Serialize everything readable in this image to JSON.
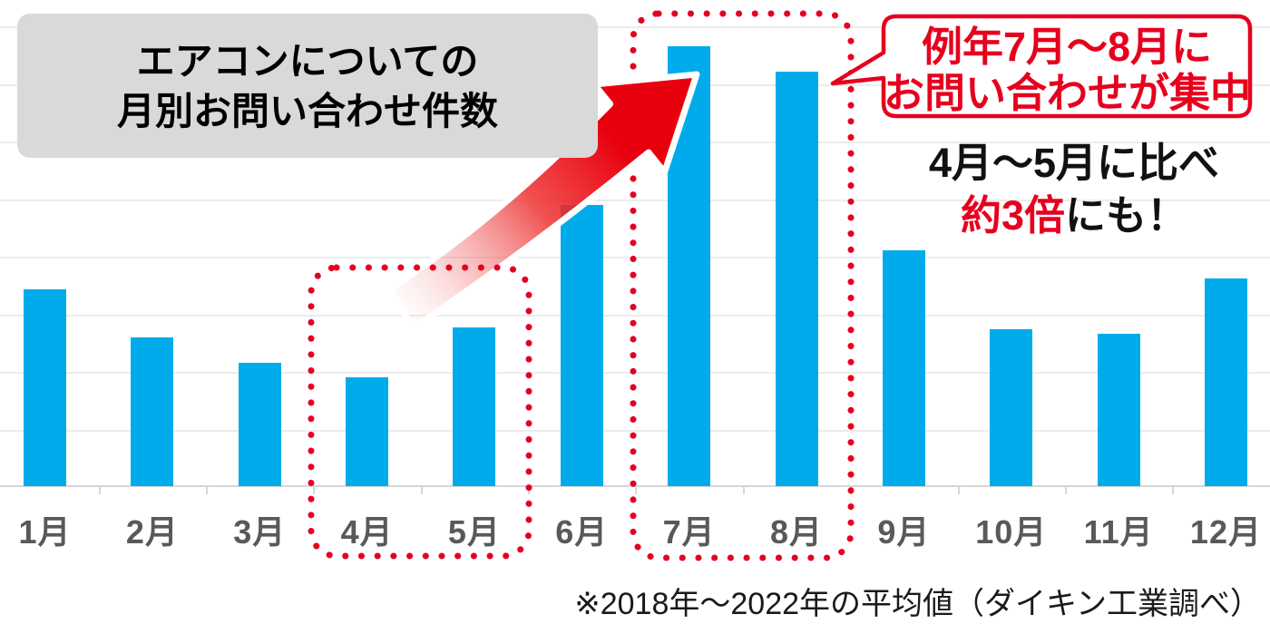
{
  "colors": {
    "bar_blue": "#00abeb",
    "accent_red": "#e6001e",
    "arrow_red": "#ed1c24",
    "title_box_gray": "#d9d9d9",
    "axis_label_gray": "#595959",
    "text_black": "#111111"
  },
  "title_box": {
    "line1": "エアコンについての",
    "line2": "月別お問い合わせ件数"
  },
  "callout_bubble": {
    "line1": "例年7月～8月に",
    "line2": "お問い合わせが集中"
  },
  "comparison_note": {
    "line1": "4月～5月に比べ",
    "highlight": "約3倍",
    "suffix": "にも！"
  },
  "source_note": "※2018年～2022年の平均値（ダイキン工業調べ）",
  "chart_data": {
    "type": "bar",
    "title": "エアコンについての月別お問い合わせ件数",
    "categories": [
      "1月",
      "2月",
      "3月",
      "4月",
      "5月",
      "6月",
      "7月",
      "8月",
      "9月",
      "10月",
      "11月",
      "12月"
    ],
    "values": [
      44.7,
      33.7,
      28.0,
      24.7,
      36.1,
      63.9,
      100,
      94.2,
      53.6,
      35.7,
      34.6,
      47.1
    ],
    "value_unit": "relative inquiry volume (July = 100), no numeric axis shown",
    "ylim": [
      0,
      104
    ],
    "xlabel": "",
    "ylabel": "",
    "grid": "faint horizontal gridlines, 9 lines including baseline, no tick labels",
    "legend": "none",
    "bar_color": "#00abeb",
    "highlighted_ranges": [
      {
        "months": [
          "4月",
          "5月"
        ],
        "style": "red dotted rounded box"
      },
      {
        "months": [
          "7月",
          "8月"
        ],
        "style": "red dotted rounded box"
      }
    ],
    "annotations": [
      {
        "text": "例年7月～8月にお問い合わせが集中",
        "style": "red speech bubble pointing at 8月 bar"
      },
      {
        "text": "4月～5月に比べ約3倍にも！",
        "style": "bold, 約3倍 in red"
      },
      {
        "text": "※2018年～2022年の平均値（ダイキン工業調べ）",
        "style": "source note bottom right"
      },
      {
        "text": "",
        "style": "large red swoosh arrow from 4月-5月 area up to 7月 bar"
      }
    ]
  }
}
